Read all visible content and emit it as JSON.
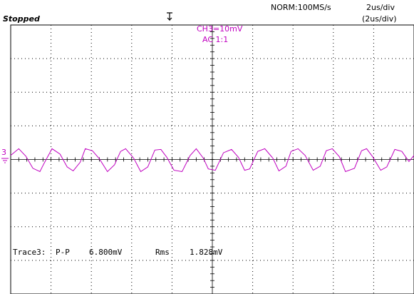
{
  "status": {
    "state": "Stopped",
    "acquisition": "NORM:100MS/s",
    "timebase": "2us/div",
    "timebase_secondary": "(2us/div)"
  },
  "channel": {
    "label": "CH3=10mV",
    "coupling": "AC 1:1",
    "marker": "3",
    "color": "#c000c0"
  },
  "measurement": {
    "trace": "Trace3:",
    "pp_label": "P-P",
    "pp_value": "6.800mV",
    "rms_label": "Rms",
    "rms_value": "1.828mV"
  },
  "chart_data": {
    "type": "line",
    "title": "",
    "xlabel": "",
    "ylabel": "",
    "x_unit": "us",
    "y_unit": "mV",
    "xlim": [
      -10,
      10
    ],
    "ylim": [
      -40,
      40
    ],
    "grid": true,
    "series": [
      {
        "x": [
          -10.0,
          -9.6,
          -9.25,
          -8.9,
          -8.55,
          -8.35,
          -7.95,
          -7.55,
          -7.2,
          -6.9,
          -6.55,
          -6.3,
          -5.95,
          -5.6,
          -5.2,
          -4.85,
          -4.55,
          -4.3,
          -3.9,
          -3.55,
          -3.2,
          -2.85,
          -2.55,
          -2.25,
          -1.9,
          -1.5,
          -1.1,
          -0.8,
          -0.45,
          -0.2,
          0.15,
          0.55,
          0.95,
          1.3,
          1.6,
          1.85,
          2.25,
          2.6,
          3.0,
          3.3,
          3.65,
          3.9,
          4.25,
          4.6,
          5.0,
          5.35,
          5.65,
          5.95,
          6.3,
          6.6,
          7.05,
          7.4,
          7.65,
          7.95,
          8.35,
          8.65,
          9.05,
          9.4,
          9.75,
          10.0
        ],
        "values": [
          1.2,
          3.2,
          1.0,
          -2.6,
          -3.6,
          -1.2,
          3.2,
          1.6,
          -2.2,
          -3.4,
          -0.8,
          3.2,
          2.6,
          0.2,
          -3.6,
          -1.6,
          2.4,
          3.2,
          0.4,
          -3.6,
          -2.2,
          2.8,
          3.0,
          0.6,
          -3.2,
          -3.6,
          1.2,
          3.2,
          0.4,
          -2.8,
          -3.2,
          2.0,
          3.0,
          0.6,
          -3.2,
          -2.8,
          2.4,
          3.2,
          0.4,
          -3.4,
          -2.0,
          2.4,
          3.2,
          1.2,
          -3.2,
          -2.0,
          2.6,
          3.2,
          0.8,
          -3.6,
          -2.6,
          2.6,
          3.2,
          0.8,
          -3.2,
          -2.2,
          3.0,
          2.4,
          -0.6,
          1.2
        ]
      }
    ]
  }
}
